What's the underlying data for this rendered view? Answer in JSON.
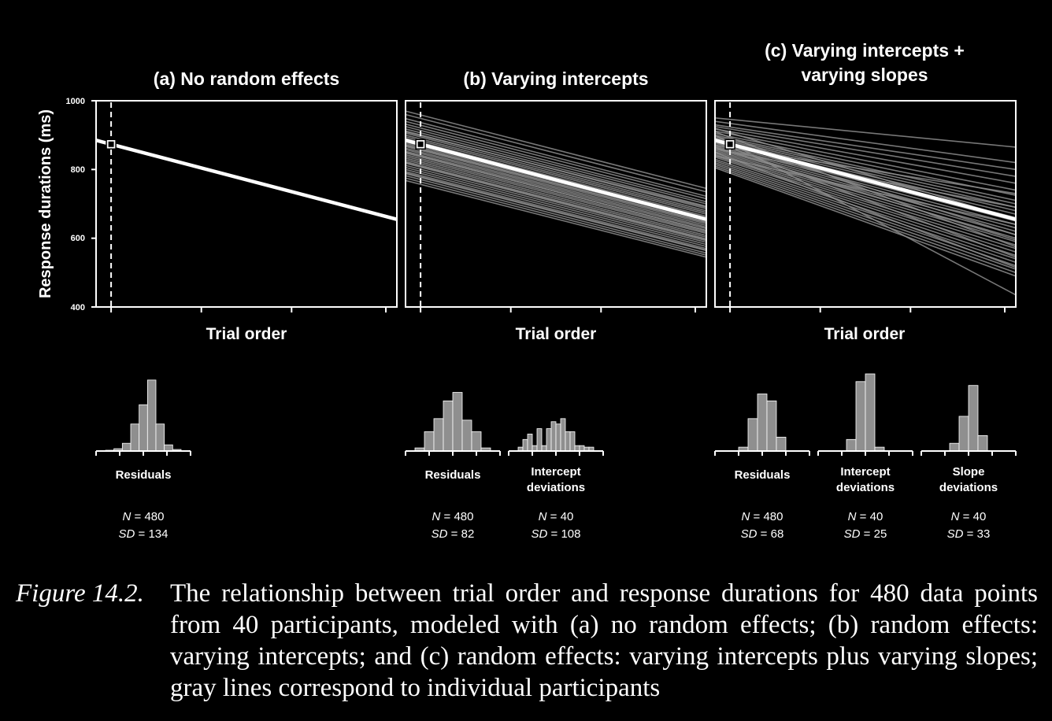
{
  "figure": {
    "y_axis_label": "Response durations (ms)",
    "caption_label": "Figure 14.2.",
    "caption_text": "The relationship between trial order and response durations for 480 data points from 40 participants, modeled with (a) no random effects; (b) random effects: varying intercepts; and (c) random effects: varying intercepts plus varying slopes; gray lines correspond to individual participants",
    "colors": {
      "background": "#000000",
      "foreground": "#ffffff",
      "participant_lines": "#8c8c8c",
      "histogram_fill": "#8f8f8f"
    }
  },
  "chart_data": [
    {
      "type": "line",
      "title": "(a) No random effects",
      "xlabel": "Trial order",
      "ylabel": "Response durations (ms)",
      "ylim": [
        400,
        1000
      ],
      "yticks": [
        "400",
        "600",
        "800",
        "1000"
      ],
      "x_range": [
        0,
        1
      ],
      "intercept_marker_x": 0.05,
      "fixed_effect_line": {
        "y_start": 885,
        "y_end": 655
      },
      "participant_lines": [],
      "histograms": [
        {
          "label": "Residuals",
          "N_label": "N",
          "N_value": "480",
          "SD_label": "SD",
          "SD_value": "134",
          "counts": [
            0.01,
            0.03,
            0.1,
            0.35,
            0.6,
            0.92,
            0.35,
            0.08,
            0.02
          ]
        }
      ]
    },
    {
      "type": "line",
      "title": "(b) Varying intercepts",
      "xlabel": "Trial order",
      "ylabel": "Response durations (ms)",
      "ylim": [
        400,
        1000
      ],
      "yticks": [
        "400",
        "600",
        "800",
        "1000"
      ],
      "x_range": [
        0,
        1
      ],
      "intercept_marker_x": 0.05,
      "fixed_effect_line": {
        "y_start": 885,
        "y_end": 655
      },
      "participant_lines": [
        [
          970,
          745
        ],
        [
          960,
          735
        ],
        [
          948,
          722
        ],
        [
          940,
          715
        ],
        [
          932,
          706
        ],
        [
          925,
          700
        ],
        [
          918,
          693
        ],
        [
          912,
          686
        ],
        [
          906,
          680
        ],
        [
          900,
          675
        ],
        [
          895,
          670
        ],
        [
          890,
          664
        ],
        [
          885,
          660
        ],
        [
          880,
          655
        ],
        [
          876,
          651
        ],
        [
          872,
          646
        ],
        [
          867,
          642
        ],
        [
          862,
          637
        ],
        [
          858,
          632
        ],
        [
          853,
          628
        ],
        [
          848,
          623
        ],
        [
          843,
          618
        ],
        [
          838,
          614
        ],
        [
          833,
          608
        ],
        [
          828,
          603
        ],
        [
          823,
          598
        ],
        [
          818,
          593
        ],
        [
          812,
          588
        ],
        [
          806,
          582
        ],
        [
          800,
          576
        ],
        [
          794,
          570
        ],
        [
          788,
          564
        ],
        [
          782,
          557
        ],
        [
          775,
          551
        ],
        [
          768,
          545
        ],
        [
          910,
          690
        ],
        [
          870,
          647
        ],
        [
          850,
          622
        ],
        [
          820,
          596
        ],
        [
          790,
          566
        ]
      ],
      "histograms": [
        {
          "label": "Residuals",
          "N_label": "N",
          "N_value": "480",
          "SD_label": "SD",
          "SD_value": "82",
          "counts": [
            0.04,
            0.25,
            0.42,
            0.65,
            0.76,
            0.4,
            0.25,
            0.04
          ]
        },
        {
          "label": "Intercept deviations",
          "N_label": "N",
          "N_value": "40",
          "SD_label": "SD",
          "SD_value": "108",
          "counts": [
            0.05,
            0.15,
            0.22,
            0.07,
            0.29,
            0.07,
            0.29,
            0.38,
            0.35,
            0.42,
            0.25,
            0.25,
            0.07,
            0.07,
            0.05,
            0.05
          ]
        }
      ]
    },
    {
      "type": "line",
      "title": "(c) Varying intercepts + varying slopes",
      "title_lines": [
        "(c) Varying intercepts +",
        "varying slopes"
      ],
      "xlabel": "Trial order",
      "ylabel": "Response durations (ms)",
      "ylim": [
        400,
        1000
      ],
      "yticks": [
        "400",
        "600",
        "800",
        "1000"
      ],
      "x_range": [
        0,
        1
      ],
      "intercept_marker_x": 0.05,
      "fixed_effect_line": {
        "y_start": 885,
        "y_end": 655
      },
      "participant_lines": [
        [
          950,
          865
        ],
        [
          940,
          820
        ],
        [
          930,
          800
        ],
        [
          925,
          780
        ],
        [
          918,
          760
        ],
        [
          912,
          740
        ],
        [
          905,
          725
        ],
        [
          900,
          710
        ],
        [
          896,
          700
        ],
        [
          892,
          690
        ],
        [
          888,
          680
        ],
        [
          884,
          670
        ],
        [
          880,
          660
        ],
        [
          876,
          650
        ],
        [
          872,
          640
        ],
        [
          868,
          630
        ],
        [
          864,
          620
        ],
        [
          860,
          610
        ],
        [
          856,
          600
        ],
        [
          852,
          590
        ],
        [
          848,
          580
        ],
        [
          844,
          570
        ],
        [
          840,
          560
        ],
        [
          836,
          550
        ],
        [
          830,
          540
        ],
        [
          825,
          530
        ],
        [
          820,
          520
        ],
        [
          815,
          510
        ],
        [
          810,
          500
        ],
        [
          805,
          490
        ],
        [
          870,
          730
        ],
        [
          890,
          610
        ],
        [
          860,
          690
        ],
        [
          910,
          575
        ],
        [
          840,
          640
        ],
        [
          880,
          545
        ],
        [
          920,
          655
        ],
        [
          850,
          515
        ],
        [
          900,
          435
        ],
        [
          865,
          595
        ]
      ],
      "histograms": [
        {
          "label": "Residuals",
          "N_label": "N",
          "N_value": "480",
          "SD_label": "SD",
          "SD_value": "68",
          "counts": [
            0.05,
            0.42,
            0.74,
            0.65,
            0.18
          ]
        },
        {
          "label": "Intercept deviations",
          "N_label": "N",
          "N_value": "40",
          "SD_label": "SD",
          "SD_value": "25",
          "counts": [
            0.15,
            0.9,
            1.0,
            0.05
          ]
        },
        {
          "label": "Slope deviations",
          "N_label": "N",
          "N_value": "40",
          "SD_label": "SD",
          "SD_value": "33",
          "counts": [
            0.1,
            0.45,
            0.85,
            0.2
          ]
        }
      ]
    }
  ]
}
